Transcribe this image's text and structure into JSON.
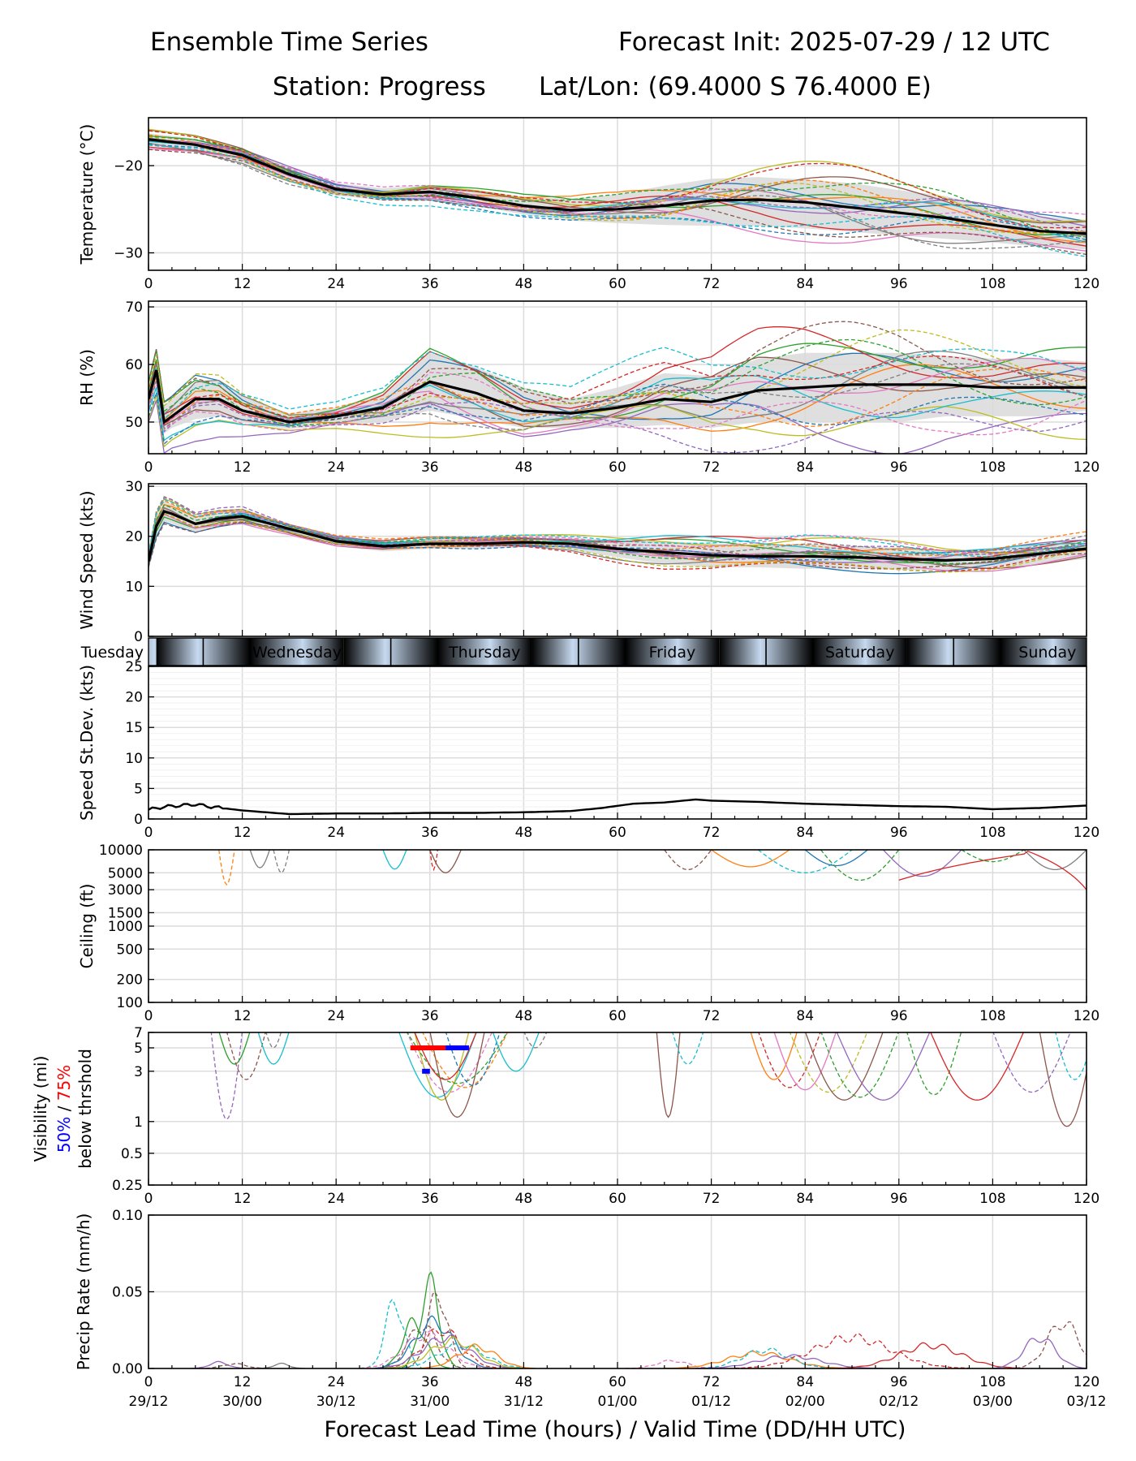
{
  "header": {
    "title_left": "Ensemble Time Series",
    "title_right": "Forecast Init: 2025-07-29 / 12 UTC",
    "station": "Station: Progress",
    "latlon": "Lat/Lon: (69.4000 S 76.4000 E)"
  },
  "x_axis": {
    "label": "Forecast Lead Time (hours) / Valid Time (DD/HH UTC)",
    "range": [
      0,
      120
    ],
    "ticks": [
      0,
      12,
      24,
      36,
      48,
      60,
      72,
      84,
      96,
      108,
      120
    ],
    "valid_times": [
      "29/12",
      "30/00",
      "30/12",
      "31/00",
      "31/12",
      "01/00",
      "01/12",
      "02/00",
      "02/12",
      "03/00",
      "03/12"
    ]
  },
  "day_band": {
    "days": [
      {
        "label": "Tuesday",
        "start": -12,
        "end": 7
      },
      {
        "label": "Wednesday",
        "start": 7,
        "end": 31
      },
      {
        "label": "Thursday",
        "start": 31,
        "end": 55
      },
      {
        "label": "Friday",
        "start": 55,
        "end": 79
      },
      {
        "label": "Saturday",
        "start": 79,
        "end": 103
      },
      {
        "label": "Sunday",
        "start": 103,
        "end": 127
      }
    ],
    "colors": {
      "night": "#6f9fe0",
      "day": "#eef5dc"
    }
  },
  "colors": {
    "mean": "#000000",
    "spread": "#d9d9d9",
    "members": [
      "#1f77b4",
      "#ff7f0e",
      "#2ca02c",
      "#d62728",
      "#9467bd",
      "#8c564b",
      "#e377c2",
      "#7f7f7f",
      "#bcbd22",
      "#17becf"
    ],
    "vis50": "#0000ff",
    "vis75": "#ff0000"
  },
  "chart_data": [
    {
      "type": "line",
      "ylabel": "Temperature (°C)",
      "ylim": [
        -32,
        -14.5
      ],
      "yticks": [
        -30,
        -20
      ],
      "grid": true,
      "x": [
        0,
        6,
        12,
        18,
        24,
        30,
        36,
        42,
        48,
        54,
        60,
        66,
        72,
        78,
        84,
        90,
        96,
        102,
        108,
        114,
        120
      ],
      "series": [
        {
          "name": "",
          "style": "mean",
          "values": [
            -17,
            -17.6,
            -18.8,
            -21,
            -22.7,
            -23.3,
            -23,
            -23.7,
            -24.6,
            -25.1,
            -25,
            -24.6,
            -24,
            -23.9,
            -24.2,
            -24.8,
            -25.4,
            -26,
            -26.8,
            -27.5,
            -27.8
          ]
        },
        {
          "name": "",
          "style": "spread_low",
          "values": [
            -17.7,
            -18.4,
            -19.6,
            -21.9,
            -23.4,
            -24,
            -23.9,
            -24.6,
            -25.6,
            -26.3,
            -26.6,
            -26.8,
            -26.9,
            -26.9,
            -27.2,
            -27.6,
            -28,
            -28.4,
            -28.8,
            -29.3,
            -29.6
          ]
        },
        {
          "name": "",
          "style": "spread_high",
          "values": [
            -16.3,
            -16.9,
            -18,
            -20.1,
            -22,
            -22.6,
            -22.2,
            -22.8,
            -23.6,
            -23.8,
            -23.3,
            -22.3,
            -21.5,
            -21.3,
            -21.6,
            -22,
            -22.8,
            -23.5,
            -24.8,
            -25.8,
            -26.2
          ]
        }
      ]
    },
    {
      "type": "line",
      "ylabel": "RH (%)",
      "ylim": [
        44.5,
        71
      ],
      "yticks": [
        50,
        60,
        70
      ],
      "grid": true,
      "x": [
        0,
        1,
        2,
        3,
        6,
        9,
        12,
        18,
        24,
        30,
        36,
        42,
        48,
        54,
        60,
        66,
        72,
        78,
        84,
        90,
        96,
        102,
        108,
        114,
        120
      ],
      "series": [
        {
          "name": "",
          "style": "mean",
          "values": [
            54,
            59,
            50,
            51,
            54,
            54,
            52,
            50,
            51,
            52.5,
            57,
            55,
            52,
            51.5,
            52.5,
            54,
            53.5,
            55.5,
            56,
            56.5,
            56.5,
            56.5,
            56,
            56,
            56
          ]
        },
        {
          "name": "",
          "style": "spread_low",
          "values": [
            52,
            56,
            48,
            49,
            50.5,
            51,
            50,
            48.8,
            49.5,
            50,
            52,
            50.5,
            49,
            49,
            49,
            49.5,
            49,
            50,
            50,
            50,
            50,
            51,
            51,
            51,
            52
          ]
        },
        {
          "name": "",
          "style": "spread_high",
          "values": [
            56,
            61,
            53,
            54,
            57,
            57,
            54.5,
            51.5,
            52.5,
            55,
            62,
            59.5,
            56,
            54,
            56,
            58.5,
            58,
            61,
            62,
            62,
            62,
            61.5,
            61,
            61,
            60.5
          ]
        }
      ]
    },
    {
      "type": "line",
      "ylabel": "Wind Speed (kts)",
      "ylim": [
        0,
        30.5
      ],
      "yticks": [
        0,
        10,
        20,
        30
      ],
      "grid": true,
      "x": [
        0,
        1,
        2,
        3,
        6,
        9,
        12,
        18,
        24,
        30,
        36,
        42,
        48,
        54,
        60,
        66,
        72,
        78,
        84,
        90,
        96,
        102,
        108,
        114,
        120
      ],
      "series": [
        {
          "name": "",
          "style": "mean",
          "values": [
            15,
            22,
            25,
            24.5,
            22.5,
            23.5,
            24,
            21.5,
            19,
            18,
            18.5,
            18.5,
            18.8,
            18.5,
            17.5,
            16.8,
            16.2,
            16,
            16,
            15.8,
            15.5,
            15.2,
            15.5,
            16.5,
            17.5
          ]
        },
        {
          "name": "",
          "style": "spread_low",
          "values": [
            14,
            20,
            23,
            22.5,
            21,
            22,
            22.5,
            20.5,
            18,
            17,
            17.5,
            17.5,
            17.8,
            17.3,
            15.8,
            14.5,
            13.8,
            13.8,
            13.5,
            13.5,
            13.3,
            13.2,
            13.5,
            14.5,
            15.5
          ]
        },
        {
          "name": "",
          "style": "spread_high",
          "values": [
            16,
            24,
            27,
            26.5,
            24,
            25,
            25.5,
            22.5,
            20,
            19,
            19.5,
            19.5,
            19.8,
            19.7,
            19.2,
            19,
            18.6,
            18.2,
            18.5,
            18.1,
            17.7,
            17.2,
            17.5,
            18.5,
            19.5
          ]
        }
      ]
    },
    {
      "type": "line",
      "ylabel": "Speed St.Dev. (kts)",
      "ylim": [
        0,
        25
      ],
      "yticks": [
        0,
        5,
        10,
        15,
        20,
        25
      ],
      "grid": true,
      "x": [
        0,
        2,
        4,
        6,
        8,
        12,
        18,
        24,
        30,
        36,
        42,
        48,
        54,
        58,
        62,
        66,
        70,
        72,
        78,
        84,
        90,
        96,
        102,
        108,
        114,
        120
      ],
      "series": [
        {
          "name": "",
          "style": "mean",
          "values": [
            1.5,
            2,
            2.2,
            2.4,
            2,
            1.4,
            0.8,
            0.9,
            0.9,
            1,
            1,
            1.1,
            1.3,
            1.8,
            2.5,
            2.7,
            3.2,
            3,
            2.8,
            2.5,
            2.3,
            2.1,
            2,
            1.6,
            1.8,
            2.2
          ]
        }
      ]
    },
    {
      "type": "line",
      "ylabel": "Ceiling (ft)",
      "yscale": "log",
      "ylim": [
        100,
        10000
      ],
      "yticks": [
        100,
        200,
        500,
        1000,
        1500,
        3000,
        5000,
        10000
      ],
      "grid": true,
      "series": []
    },
    {
      "type": "line",
      "ylabel": "Visibility (mi)",
      "ylabel_line2": "below thrshold",
      "ylabel_pct50": "50%",
      "ylabel_sep": " / ",
      "ylabel_pct75": "75%",
      "yscale": "log",
      "ylim": [
        0.25,
        7
      ],
      "yticks": [
        0.25,
        0.5,
        1,
        3,
        5,
        7
      ],
      "grid": true,
      "bars": [
        {
          "name": "75%",
          "y": 5,
          "x_start": 33.5,
          "x_end": 38
        },
        {
          "name": "50%",
          "y": 5,
          "x_start": 38,
          "x_end": 41
        },
        {
          "name": "50%",
          "y": 3,
          "x_start": 35,
          "x_end": 36
        }
      ]
    },
    {
      "type": "line",
      "ylabel": "Precip Rate (mm/h)",
      "ylim": [
        0,
        0.1
      ],
      "yticks": [
        0.0,
        0.05,
        0.1
      ],
      "ytick_labels": [
        "0.00",
        "0.05",
        "0.10"
      ],
      "grid": true,
      "series": []
    }
  ]
}
